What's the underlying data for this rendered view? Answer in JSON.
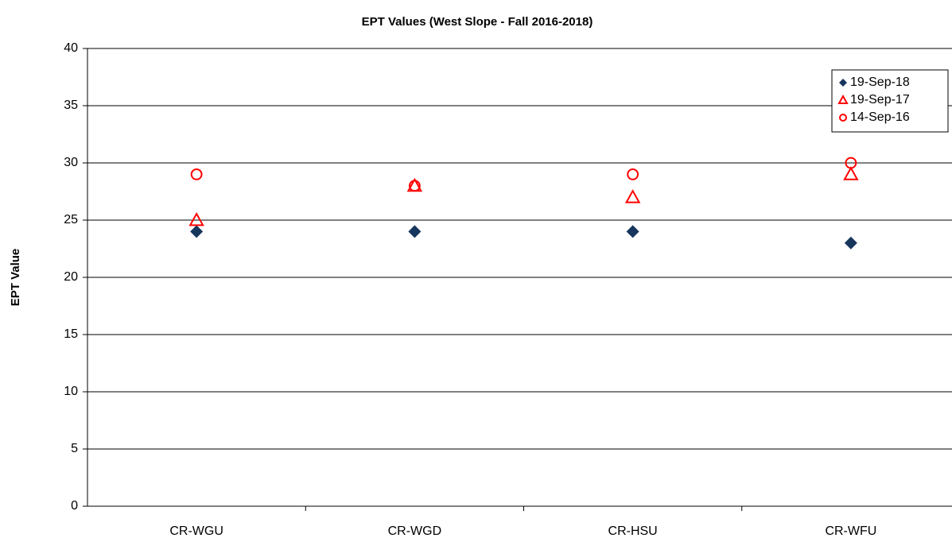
{
  "chart_data": {
    "type": "scatter",
    "title": "EPT Values  (West Slope - Fall 2016-2018)",
    "ylabel": "EPT Value",
    "categories": [
      "CR-WGU",
      "CR-WGD",
      "CR-HSU",
      "CR-WFU"
    ],
    "series": [
      {
        "name": "19-Sep-18",
        "color": "#17365d",
        "marker": "diamond",
        "values": [
          24,
          24,
          24,
          23
        ]
      },
      {
        "name": "19-Sep-17",
        "color": "#ff0000",
        "marker": "triangle",
        "values": [
          25,
          28,
          27,
          29
        ]
      },
      {
        "name": "14-Sep-16",
        "color": "#ff0000",
        "marker": "circle",
        "values": [
          29,
          28,
          29,
          30
        ]
      }
    ],
    "ylim": [
      0,
      40
    ],
    "yticks": [
      0,
      5,
      10,
      15,
      20,
      25,
      30,
      35,
      40
    ],
    "grid": true,
    "legend": "upper right"
  }
}
